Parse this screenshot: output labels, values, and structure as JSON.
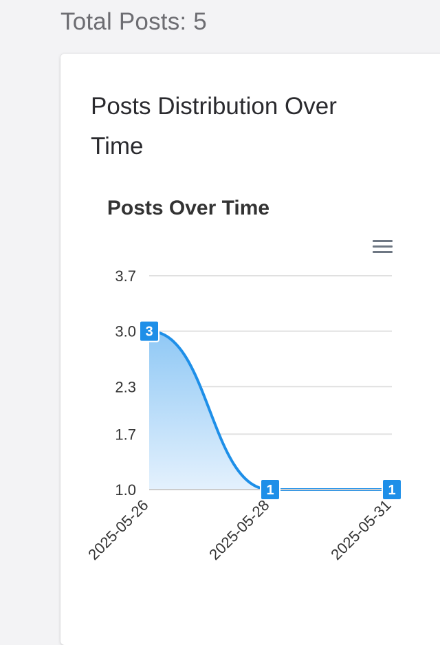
{
  "header": {
    "total_posts": "Total Posts: 5"
  },
  "card": {
    "title": "Posts Distribution Over Time"
  },
  "chart_data": {
    "type": "area",
    "title": "Posts Over Time",
    "categories": [
      "2025-05-26",
      "2025-05-28",
      "2025-05-31"
    ],
    "values": [
      3,
      1,
      1
    ],
    "y_ticks": [
      "1.0",
      "1.7",
      "2.3",
      "3.0",
      "3.7"
    ],
    "ylim": [
      1.0,
      3.7
    ],
    "grid": true,
    "legend": "none",
    "data_labels": true,
    "colors": {
      "line": "#1e8fe8",
      "label_bg": "#1e8fe8",
      "fill_top": "#8fc8f5",
      "fill_bottom": "#e4f1fd",
      "grid": "#e0e0e0",
      "axis": "#cccccc"
    },
    "menu_icon": "hamburger-menu-icon"
  }
}
